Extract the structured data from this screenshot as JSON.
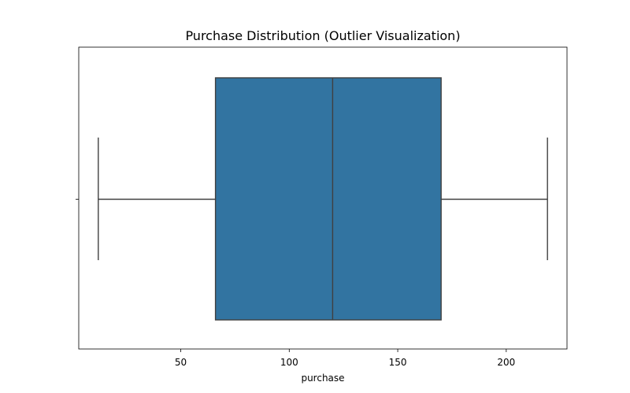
{
  "chart_data": {
    "type": "box",
    "title": "Purchase Distribution (Outlier Visualization)",
    "xlabel": "purchase",
    "ylabel": "",
    "orientation": "horizontal",
    "xlim": [
      3,
      228
    ],
    "xticks": [
      50,
      100,
      150,
      200
    ],
    "grid": false,
    "box": {
      "whisker_low": 12,
      "q1": 66,
      "median": 120,
      "q3": 170,
      "whisker_high": 219,
      "outliers": []
    },
    "colors": {
      "box_fill": "#3274a1",
      "lines": "#404040",
      "axes": "#000000"
    }
  }
}
